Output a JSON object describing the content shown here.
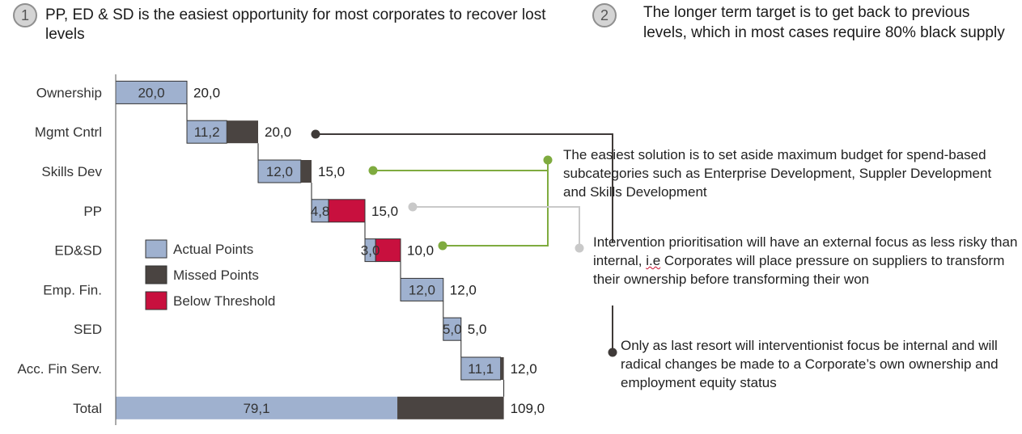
{
  "headers": {
    "one": {
      "number": "1",
      "text": "PP, ED & SD is the easiest opportunity for most corporates to recover lost levels"
    },
    "two": {
      "number": "2",
      "text": "The longer term target is to get back to previous levels, which in most cases require 80% black supply"
    }
  },
  "notes": {
    "easiest": "The easiest solution is to set aside maximum budget for spend-based subcategories such as Enterprise Development, Suppler Development and Skills Development",
    "prioritisation_before": "Intervention prioritisation will have an external focus as less risky than internal, ",
    "prioritisation_ie": "i.e",
    "prioritisation_after": " Corporates will place pressure on suppliers to transform their ownership before transforming their won",
    "last_resort": "Only as last resort will interventionist  focus be internal and will radical changes be made to a Corporate’s own ownership and employment equity status"
  },
  "colors": {
    "actual": "#9fb1cf",
    "missed": "#4a4441",
    "below": "#c8103e",
    "green": "#7fab3f",
    "grey_line": "#c9c9c9",
    "dark_line": "#3f3a38"
  },
  "chart_data": {
    "type": "waterfall",
    "legend": [
      "Actual Points",
      "Missed Points",
      "Below Threshold"
    ],
    "legend_position": "middle-left",
    "xlim": [
      0,
      109
    ],
    "categories": [
      "Ownership",
      "Mgmt Cntrl",
      "Skills Dev",
      "PP",
      "ED&SD",
      "Emp. Fin.",
      "SED",
      "Acc. Fin Serv.",
      "Total"
    ],
    "series": [
      {
        "name": "Actual Points",
        "values": [
          20.0,
          11.2,
          12.0,
          4.8,
          3.0,
          12.0,
          5.0,
          11.1,
          79.1
        ]
      },
      {
        "name": "Missed Points",
        "values": [
          0,
          8.8,
          3.0,
          0,
          0,
          0,
          0,
          0.9,
          29.9
        ]
      },
      {
        "name": "Below Threshold",
        "values": [
          0,
          0,
          0,
          10.2,
          7.0,
          0,
          0,
          0,
          0
        ]
      }
    ],
    "totals": [
      20.0,
      20.0,
      15.0,
      15.0,
      10.0,
      12.0,
      5.0,
      12.0,
      109.0
    ],
    "actual_labels": [
      "20,0",
      "11,2",
      "12,0",
      "4,8",
      "3,0",
      "12,0",
      "5,0",
      "11,1",
      "79,1"
    ],
    "total_labels": [
      "20,0",
      "20,0",
      "15,0",
      "15,0",
      "10,0",
      "12,0",
      "5,0",
      "12,0",
      "109,0"
    ]
  }
}
